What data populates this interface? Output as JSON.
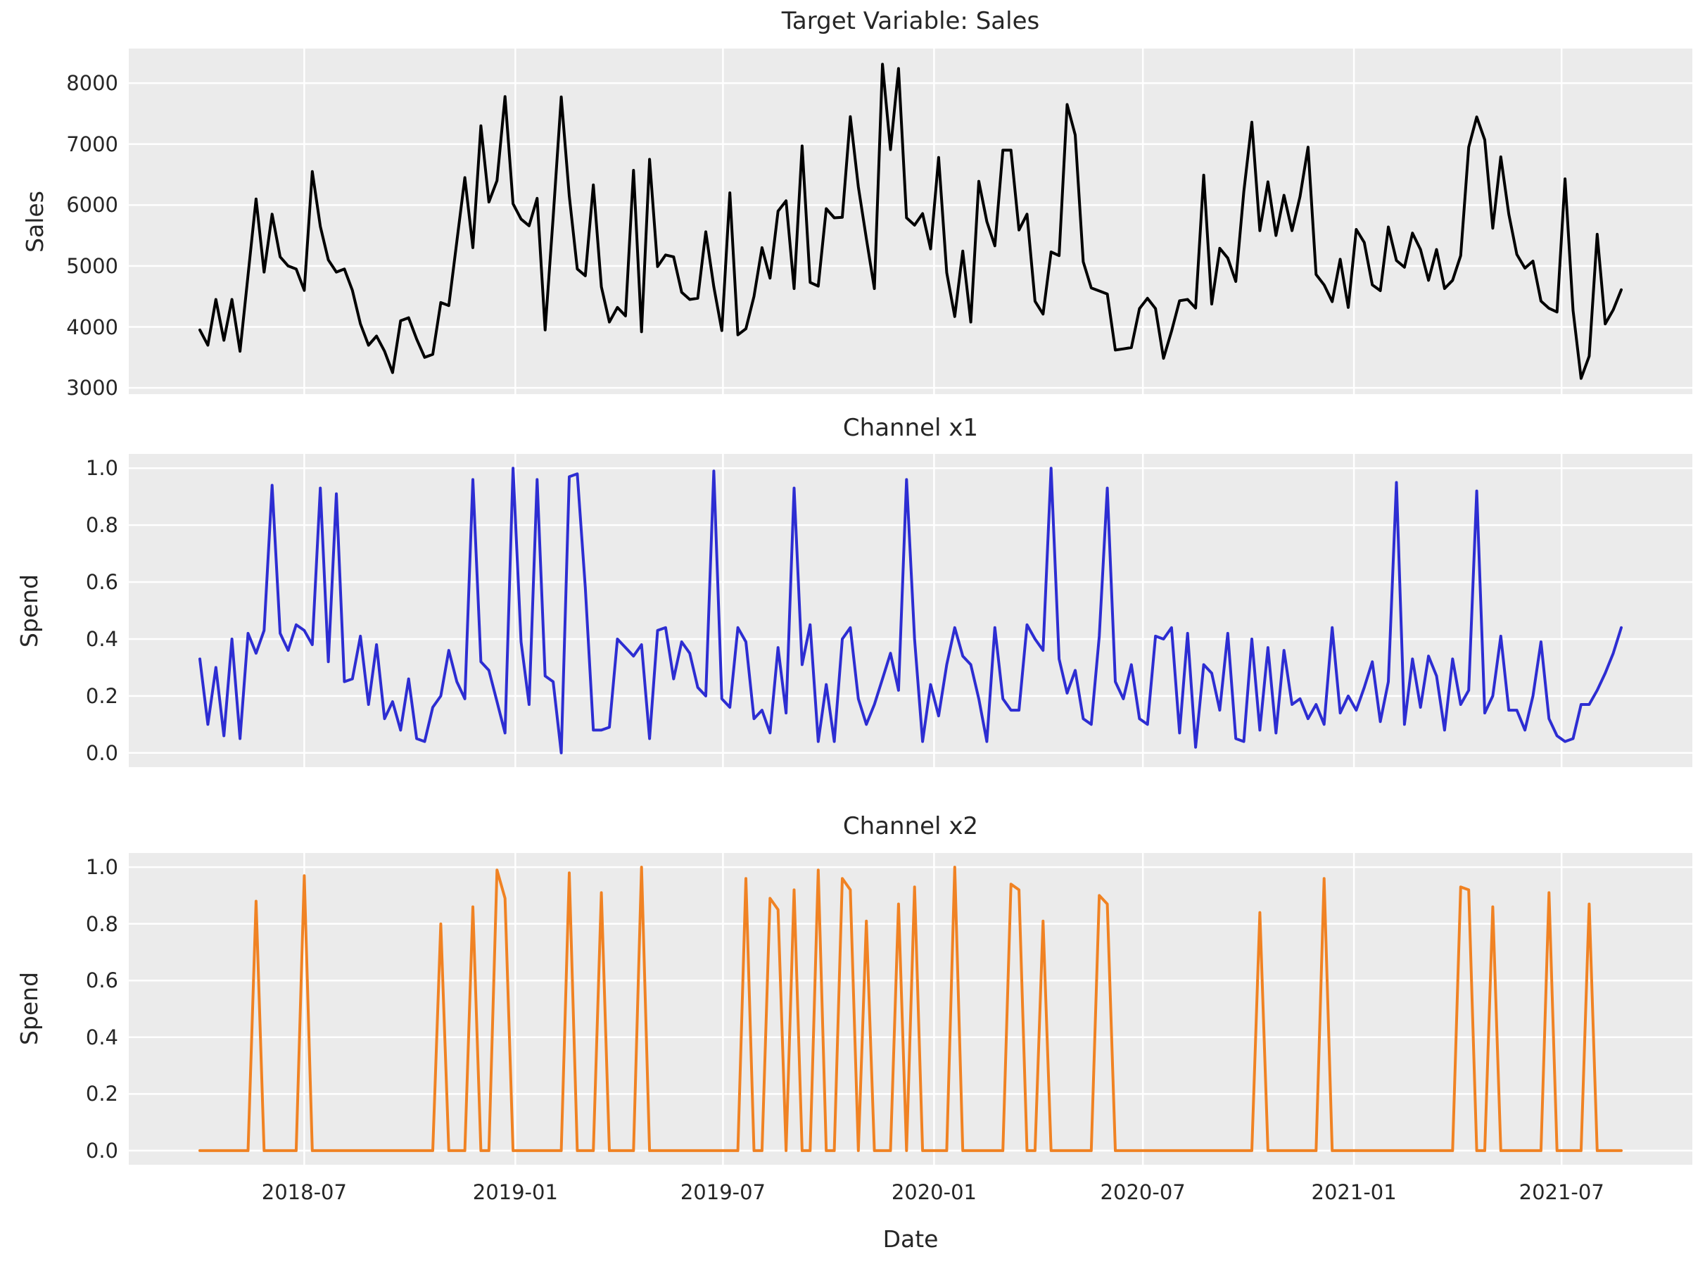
{
  "figure": {
    "background": "#ffffff",
    "axes_background": "#ebebeb",
    "grid_color": "#ffffff",
    "text_color": "#262626"
  },
  "chart_data": {
    "type": "line",
    "x_start_date": "2018-04-01",
    "x_step_days": 7,
    "n_points": 178,
    "xlabel": "Date",
    "legend": "none",
    "grid": "on",
    "xtick_labels": [
      "2018-07",
      "2019-01",
      "2019-07",
      "2020-01",
      "2020-07",
      "2021-01",
      "2021-07"
    ],
    "xtick_week_index": [
      13.0,
      39.2857,
      65.1429,
      91.4286,
      117.4286,
      143.7143,
      169.5714
    ],
    "subplots": [
      {
        "title": "Target Variable: Sales",
        "ylabel": "Sales",
        "line_color": "#000000",
        "ytick_labels": [
          "3000",
          "4000",
          "5000",
          "6000",
          "7000",
          "8000"
        ],
        "ytick_values": [
          3000,
          4000,
          5000,
          6000,
          7000,
          8000
        ],
        "ylim": [
          2897,
          8568
        ],
        "values": [
          3950,
          3700,
          4450,
          3780,
          4450,
          3600,
          4850,
          6100,
          4900,
          5850,
          5150,
          5000,
          4950,
          4600,
          6550,
          5650,
          5100,
          4900,
          4950,
          4600,
          4050,
          3700,
          3850,
          3600,
          3250,
          4100,
          4150,
          3800,
          3500,
          3550,
          4400,
          4350,
          5400,
          6450,
          5300,
          7300,
          6050,
          6400,
          7780,
          6020,
          5770,
          5660,
          6110,
          3950,
          5800,
          7775,
          6150,
          4950,
          4840,
          6330,
          4660,
          4080,
          4320,
          4180,
          6570,
          3920,
          6750,
          4990,
          5180,
          5150,
          4570,
          4450,
          4470,
          5560,
          4660,
          3940,
          6200,
          3870,
          3970,
          4500,
          5300,
          4800,
          5900,
          6070,
          4630,
          6970,
          4730,
          4670,
          5940,
          5790,
          5800,
          7450,
          6300,
          5450,
          4630,
          8310,
          6910,
          8240,
          5790,
          5670,
          5860,
          5280,
          6780,
          4890,
          4170,
          5245,
          4080,
          6390,
          5730,
          5330,
          6900,
          6900,
          5590,
          5850,
          4420,
          4210,
          5230,
          5170,
          7650,
          7150,
          5070,
          4640,
          4590,
          4540,
          3620,
          3640,
          3660,
          4300,
          4470,
          4300,
          3485,
          3930,
          4430,
          4450,
          4310,
          6490,
          4375,
          5290,
          5130,
          4745,
          6220,
          7360,
          5580,
          6380,
          5500,
          6160,
          5580,
          6140,
          6950,
          4860,
          4690,
          4415,
          5110,
          4320,
          5600,
          5385,
          4690,
          4595,
          5640,
          5090,
          4980,
          5540,
          5270,
          4765,
          5270,
          4630,
          4765,
          5170,
          6950,
          7445,
          7070,
          5620,
          6790,
          5850,
          5190,
          4965,
          5080,
          4424,
          4305,
          4245,
          6430,
          4270,
          3155,
          3520,
          5520,
          4050,
          4280,
          4610
        ]
      },
      {
        "title": "Channel x1",
        "ylabel": "Spend",
        "line_color": "#2d2dd2",
        "ytick_labels": [
          "0.0",
          "0.2",
          "0.4",
          "0.6",
          "0.8",
          "1.0"
        ],
        "ytick_values": [
          0.0,
          0.2,
          0.4,
          0.6,
          0.8,
          1.0
        ],
        "ylim": [
          -0.05,
          1.05
        ],
        "values": [
          0.33,
          0.1,
          0.3,
          0.06,
          0.4,
          0.05,
          0.42,
          0.35,
          0.43,
          0.94,
          0.42,
          0.36,
          0.45,
          0.43,
          0.38,
          0.93,
          0.32,
          0.91,
          0.25,
          0.26,
          0.41,
          0.17,
          0.38,
          0.12,
          0.18,
          0.08,
          0.26,
          0.05,
          0.04,
          0.16,
          0.2,
          0.36,
          0.25,
          0.19,
          0.96,
          0.32,
          0.29,
          0.18,
          0.07,
          1.0,
          0.39,
          0.17,
          0.96,
          0.27,
          0.25,
          0.0,
          0.97,
          0.98,
          0.58,
          0.08,
          0.08,
          0.09,
          0.4,
          0.37,
          0.34,
          0.38,
          0.05,
          0.43,
          0.44,
          0.26,
          0.39,
          0.35,
          0.23,
          0.2,
          0.99,
          0.19,
          0.16,
          0.44,
          0.39,
          0.12,
          0.15,
          0.07,
          0.37,
          0.14,
          0.93,
          0.31,
          0.45,
          0.04,
          0.24,
          0.04,
          0.4,
          0.44,
          0.19,
          0.1,
          0.17,
          0.26,
          0.35,
          0.22,
          0.96,
          0.4,
          0.04,
          0.24,
          0.13,
          0.31,
          0.44,
          0.34,
          0.31,
          0.19,
          0.04,
          0.44,
          0.19,
          0.15,
          0.15,
          0.45,
          0.4,
          0.36,
          1.0,
          0.33,
          0.21,
          0.29,
          0.12,
          0.1,
          0.41,
          0.93,
          0.25,
          0.19,
          0.31,
          0.12,
          0.1,
          0.41,
          0.4,
          0.44,
          0.07,
          0.42,
          0.02,
          0.31,
          0.28,
          0.15,
          0.42,
          0.05,
          0.04,
          0.4,
          0.08,
          0.37,
          0.07,
          0.36,
          0.17,
          0.19,
          0.12,
          0.17,
          0.1,
          0.44,
          0.14,
          0.2,
          0.15,
          0.23,
          0.32,
          0.11,
          0.25,
          0.95,
          0.1,
          0.33,
          0.16,
          0.34,
          0.27,
          0.08,
          0.33,
          0.17,
          0.22,
          0.92,
          0.14,
          0.2,
          0.41,
          0.15,
          0.15,
          0.08,
          0.2,
          0.39,
          0.12,
          0.06,
          0.04,
          0.05,
          0.17,
          0.17,
          0.22,
          0.28,
          0.35,
          0.44
        ]
      },
      {
        "title": "Channel x2",
        "ylabel": "Spend",
        "line_color": "#f08223",
        "ytick_labels": [
          "0.0",
          "0.2",
          "0.4",
          "0.6",
          "0.8",
          "1.0"
        ],
        "ytick_values": [
          0.0,
          0.2,
          0.4,
          0.6,
          0.8,
          1.0
        ],
        "ylim": [
          -0.05,
          1.05
        ],
        "values": [
          0,
          0,
          0,
          0,
          0,
          0,
          0,
          0.88,
          0,
          0,
          0,
          0,
          0,
          0.97,
          0,
          0,
          0,
          0,
          0,
          0,
          0,
          0,
          0,
          0,
          0,
          0,
          0,
          0,
          0,
          0,
          0.8,
          0,
          0,
          0,
          0.86,
          0,
          0,
          0.99,
          0.89,
          0,
          0,
          0,
          0,
          0,
          0,
          0,
          0.98,
          0,
          0,
          0,
          0.91,
          0,
          0,
          0,
          0,
          1.0,
          0,
          0,
          0,
          0,
          0,
          0,
          0,
          0,
          0,
          0,
          0,
          0,
          0.96,
          0,
          0,
          0.89,
          0.85,
          0,
          0.92,
          0,
          0,
          0.99,
          0,
          0,
          0.96,
          0.92,
          0,
          0.81,
          0,
          0,
          0,
          0.87,
          0,
          0.93,
          0,
          0,
          0,
          0,
          1.0,
          0,
          0,
          0,
          0,
          0,
          0,
          0.94,
          0.92,
          0,
          0,
          0.81,
          0,
          0,
          0,
          0,
          0,
          0,
          0.9,
          0.87,
          0,
          0,
          0,
          0,
          0,
          0,
          0,
          0,
          0,
          0,
          0,
          0,
          0,
          0,
          0,
          0,
          0,
          0,
          0.84,
          0,
          0,
          0,
          0,
          0,
          0,
          0,
          0.96,
          0,
          0,
          0,
          0,
          0,
          0,
          0,
          0,
          0,
          0,
          0,
          0,
          0,
          0,
          0,
          0,
          0.93,
          0.92,
          0,
          0,
          0.86,
          0,
          0,
          0,
          0,
          0,
          0,
          0.91,
          0,
          0,
          0,
          0,
          0.87,
          0,
          0,
          0,
          0
        ]
      }
    ]
  }
}
